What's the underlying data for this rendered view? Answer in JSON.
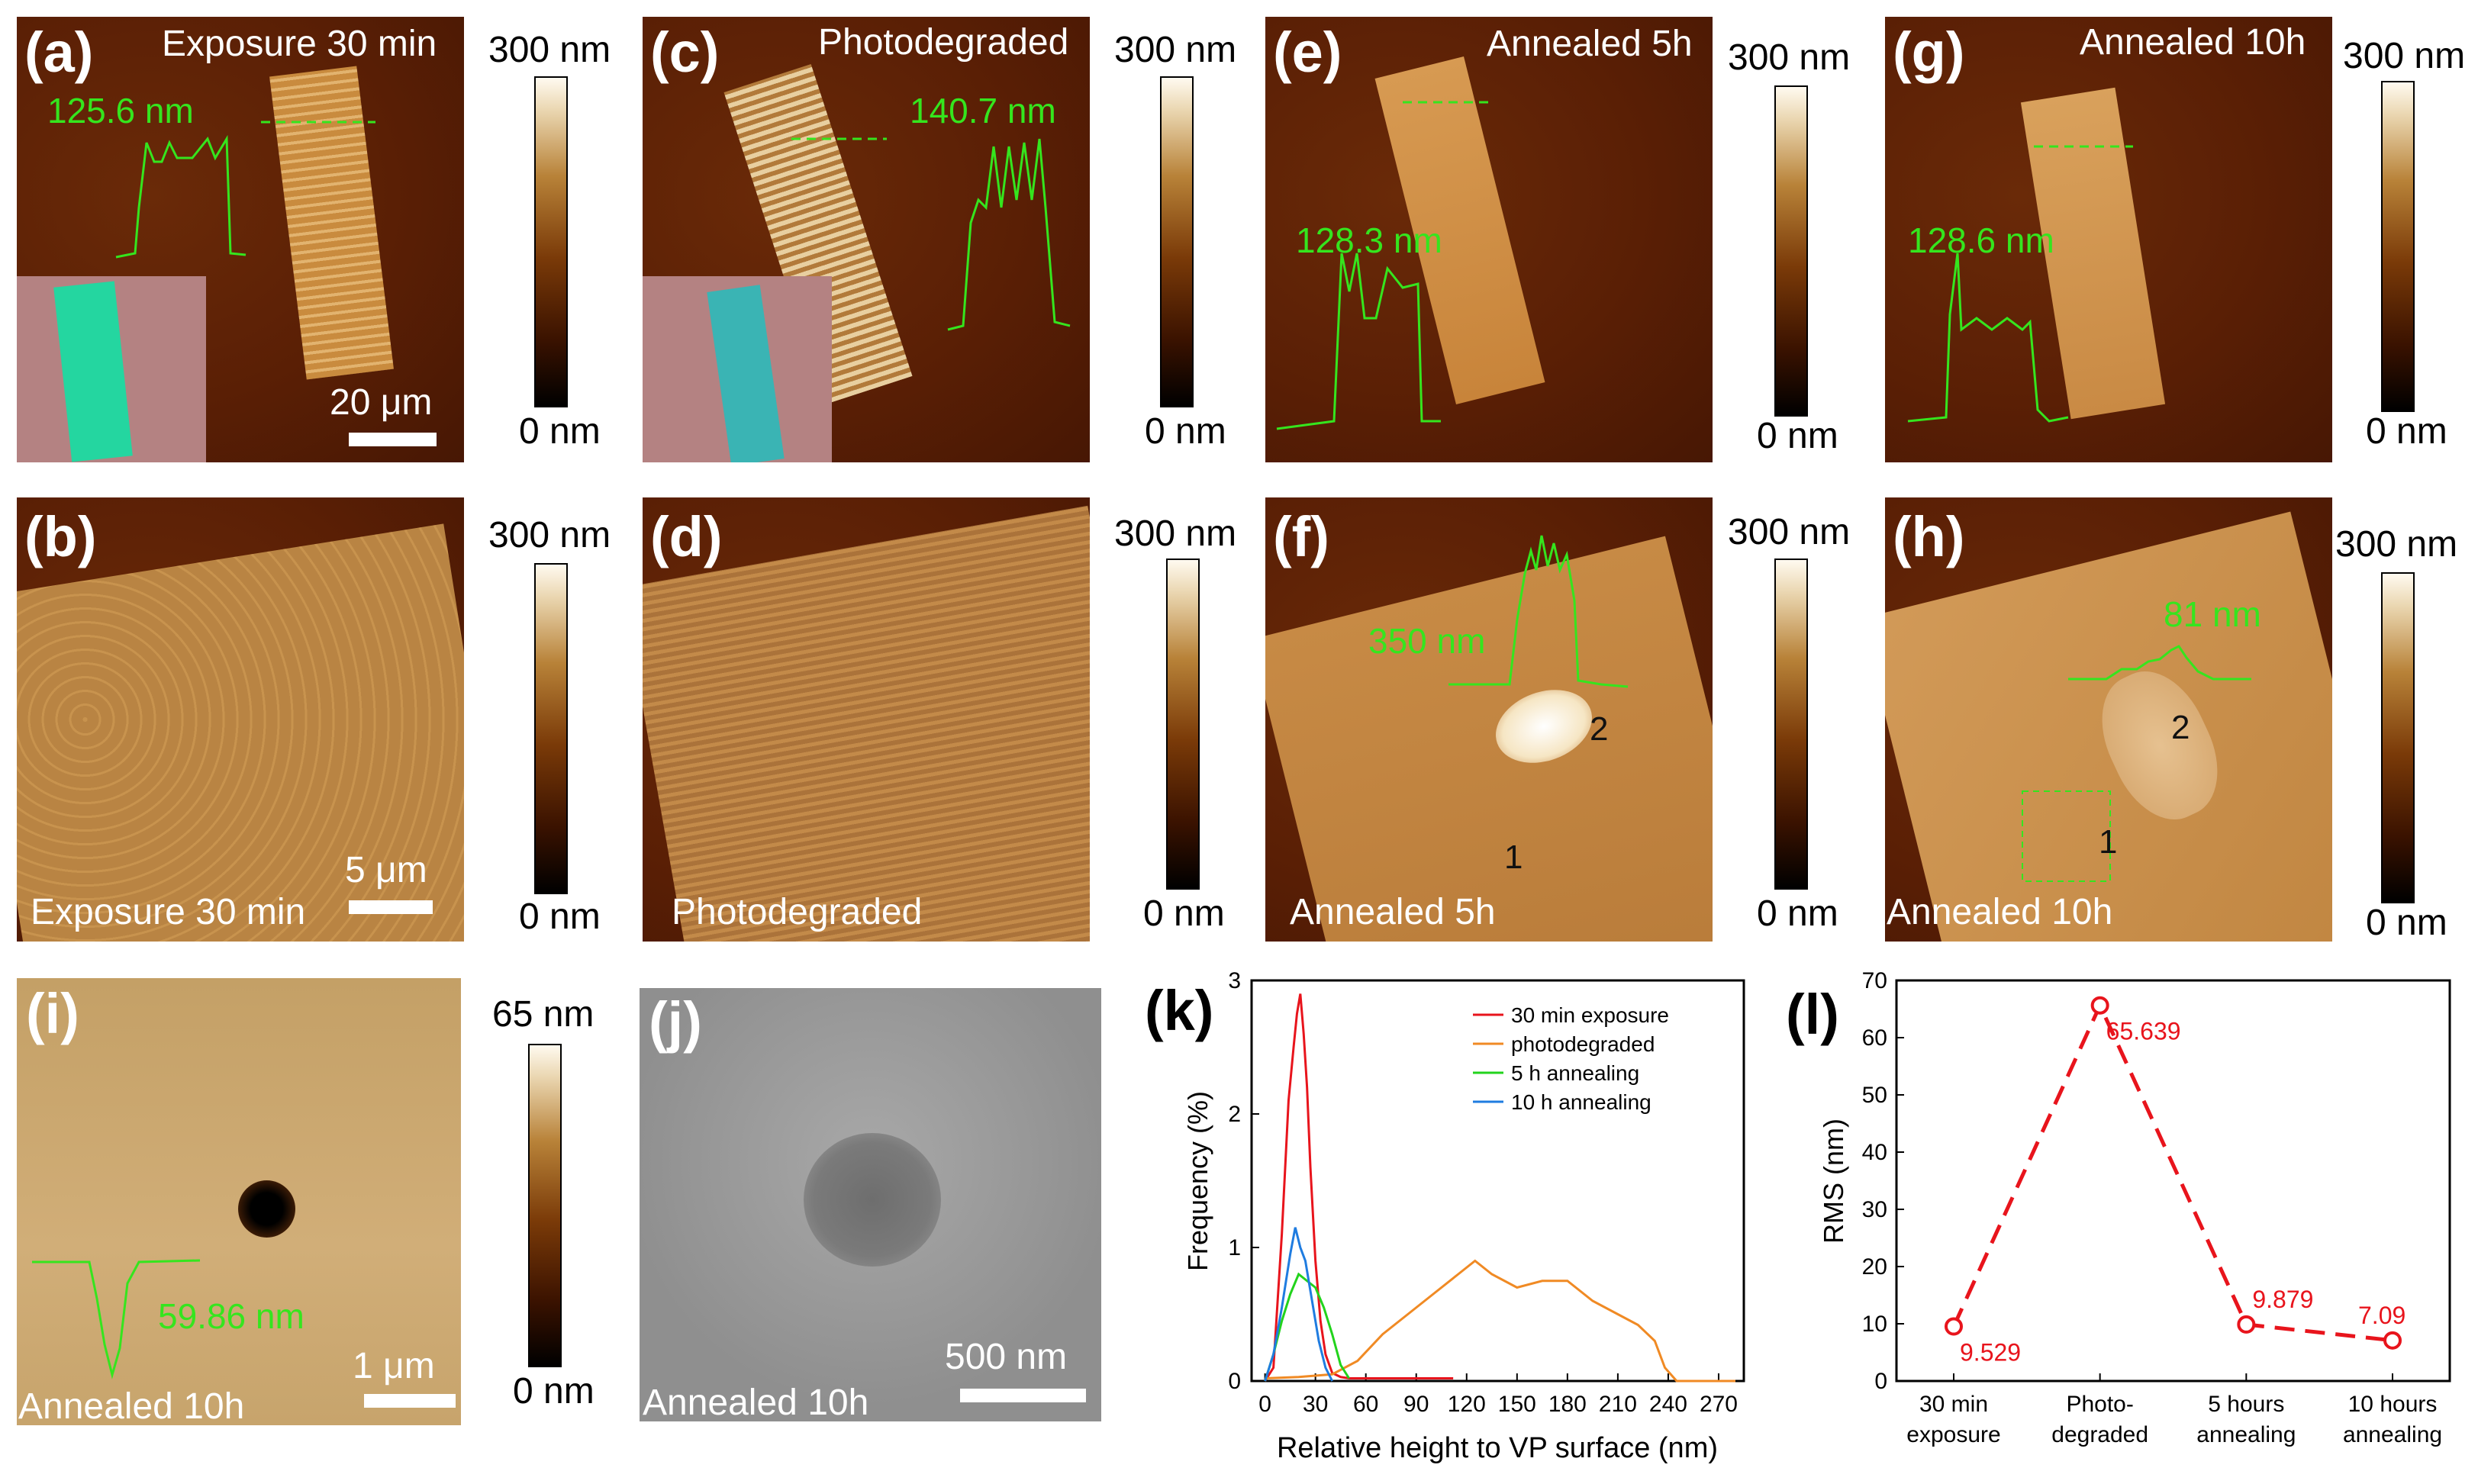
{
  "panels": {
    "a": {
      "label": "(a)",
      "caption": "Exposure 30 min",
      "profile": "125.6 nm",
      "scale": "20 μm"
    },
    "b": {
      "label": "(b)",
      "caption": "Exposure 30 min",
      "scale": "5 μm"
    },
    "c": {
      "label": "(c)",
      "caption": "Photodegraded",
      "profile": "140.7 nm"
    },
    "d": {
      "label": "(d)",
      "caption": "Photodegraded"
    },
    "e": {
      "label": "(e)",
      "caption": "Annealed 5h",
      "profile": "128.3 nm"
    },
    "f": {
      "label": "(f)",
      "caption": "Annealed 5h",
      "profile": "350 nm",
      "m1": "1",
      "m2": "2"
    },
    "g": {
      "label": "(g)",
      "caption": "Annealed 10h",
      "profile": "128.6 nm"
    },
    "h": {
      "label": "(h)",
      "caption": "Annealed 10h",
      "profile": "81 nm",
      "m1": "1",
      "m2": "2"
    },
    "i": {
      "label": "(i)",
      "caption": "Annealed 10h",
      "profile": "59.86 nm",
      "scale": "1 μm"
    },
    "j": {
      "label": "(j)",
      "caption": "Annealed 10h",
      "scale": "500 nm"
    }
  },
  "colorbars": {
    "max300": "300 nm",
    "max65": "65 nm",
    "min": "0 nm"
  },
  "chart_data": [
    {
      "type": "line",
      "panel_label": "(k)",
      "xlabel": "Relative height to VP surface (nm)",
      "ylabel": "Frequency (%)",
      "xlim": [
        -8,
        285
      ],
      "ylim": [
        0,
        3
      ],
      "xticks": [
        0,
        30,
        60,
        90,
        120,
        150,
        180,
        210,
        240,
        270
      ],
      "yticks": [
        0,
        1,
        2,
        3
      ],
      "series": [
        {
          "name": "30 min exposure",
          "color": "#e8141c",
          "x": [
            0,
            5,
            10,
            14,
            17,
            19,
            21,
            23,
            25,
            27,
            30,
            33,
            36,
            40,
            45,
            50,
            60,
            80,
            100,
            112
          ],
          "y": [
            0.0,
            0.1,
            1.1,
            2.1,
            2.5,
            2.75,
            2.9,
            2.6,
            2.2,
            1.6,
            0.9,
            0.45,
            0.2,
            0.06,
            0.03,
            0.02,
            0.02,
            0.02,
            0.02,
            0.02
          ]
        },
        {
          "name": "photodegraded",
          "color": "#f08a24",
          "x": [
            0,
            20,
            40,
            55,
            70,
            85,
            100,
            115,
            125,
            135,
            150,
            165,
            180,
            195,
            210,
            222,
            232,
            238,
            245,
            260,
            280
          ],
          "y": [
            0.02,
            0.03,
            0.05,
            0.15,
            0.35,
            0.5,
            0.65,
            0.8,
            0.9,
            0.8,
            0.7,
            0.75,
            0.75,
            0.6,
            0.5,
            0.42,
            0.3,
            0.1,
            0.0,
            0.0,
            0.0
          ]
        },
        {
          "name": "5 h annealing",
          "color": "#22d31c",
          "x": [
            0,
            5,
            10,
            15,
            20,
            25,
            30,
            35,
            40,
            45,
            50
          ],
          "y": [
            0.0,
            0.2,
            0.45,
            0.65,
            0.8,
            0.75,
            0.7,
            0.55,
            0.35,
            0.12,
            0.02
          ]
        },
        {
          "name": "10 h annealing",
          "color": "#1f7ce0",
          "x": [
            0,
            5,
            10,
            15,
            18,
            21,
            24,
            28,
            32,
            36,
            40
          ],
          "y": [
            0.0,
            0.2,
            0.55,
            0.95,
            1.15,
            1.0,
            0.9,
            0.6,
            0.3,
            0.1,
            0.0
          ]
        }
      ]
    },
    {
      "type": "line",
      "panel_label": "(l)",
      "xlabel": "",
      "ylabel": "RMS (nm)",
      "ylim": [
        0,
        70
      ],
      "yticks": [
        0,
        10,
        20,
        30,
        40,
        50,
        60,
        70
      ],
      "categories": [
        "30 min\nexposure",
        "Photo-\ndegraded",
        "5 hours\nannealing",
        "10 hours\nannealing"
      ],
      "values": [
        9.529,
        65.639,
        9.879,
        7.09
      ],
      "value_labels": [
        "9.529",
        "65.639",
        "9.879",
        "7.09"
      ],
      "color": "#e8141c"
    }
  ]
}
